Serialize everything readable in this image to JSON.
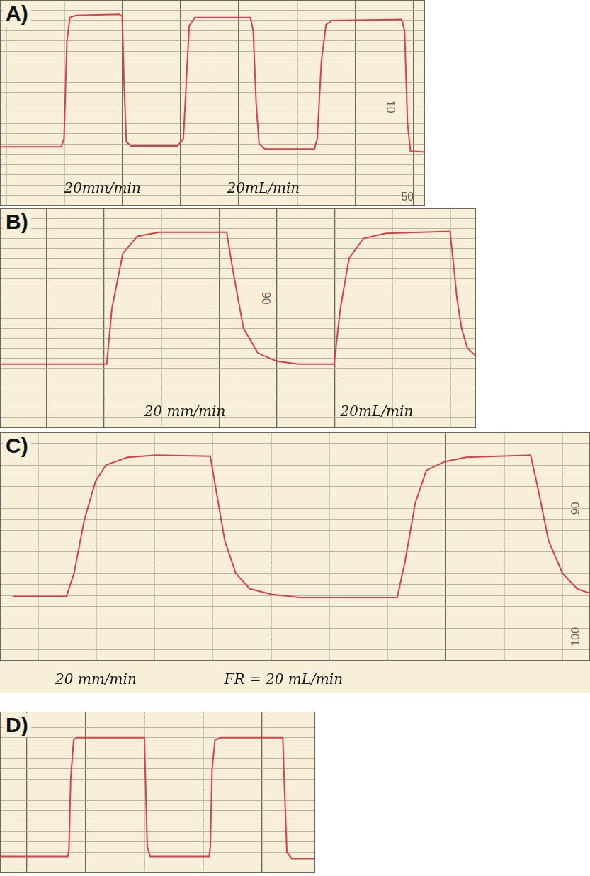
{
  "chart_data": [
    {
      "type": "line",
      "title": "A)",
      "color": "#d8404c",
      "grid": true,
      "tick_labels": false,
      "annotations": [
        "20mm/min",
        "20mL/min",
        "10",
        "50"
      ],
      "x": [
        -0.1,
        0.95,
        1.0,
        1.05,
        1.1,
        1.2,
        1.95,
        2.0,
        2.03,
        2.07,
        2.15,
        2.95,
        3.05,
        3.1,
        3.15,
        3.25,
        4.2,
        4.25,
        4.3,
        4.35,
        4.45,
        5.3,
        5.35,
        5.42,
        5.5,
        5.6,
        6.8,
        6.85,
        6.9,
        6.95,
        7.2
      ],
      "values": [
        5.7,
        5.7,
        6.5,
        16,
        18.3,
        18.5,
        18.6,
        18.4,
        12,
        6.2,
        5.8,
        5.8,
        6.5,
        12,
        17.5,
        18.3,
        18.3,
        17,
        10,
        6,
        5.5,
        5.5,
        6.5,
        14,
        17.6,
        18,
        18.1,
        17,
        8,
        5.3,
        5.2
      ],
      "xlim": [
        -0.1,
        7.2
      ],
      "xticks": [
        0,
        1,
        2,
        3,
        4,
        5,
        6,
        7
      ],
      "ylim": [
        0,
        20
      ],
      "yticks": [
        0,
        1,
        2,
        3,
        4,
        5,
        6,
        7,
        8,
        9,
        10,
        11,
        12,
        13,
        14,
        15,
        16,
        17,
        18,
        19,
        20
      ]
    },
    {
      "type": "line",
      "title": "B)",
      "color": "#d8404c",
      "grid": true,
      "tick_labels": false,
      "annotations": [
        "20 mm/min",
        "20mL/min",
        "90"
      ],
      "x": [
        0.2,
        2.05,
        2.14,
        2.33,
        2.58,
        2.96,
        4.13,
        4.23,
        4.42,
        4.67,
        4.99,
        5.37,
        5.99,
        6.1,
        6.25,
        6.5,
        6.89,
        8.0,
        8.05,
        8.12,
        8.2,
        8.3,
        8.45
      ],
      "values": [
        6.4,
        6.4,
        12,
        17.5,
        19.2,
        19.6,
        19.6,
        16,
        10,
        7.5,
        6.7,
        6.4,
        6.4,
        12,
        17,
        19,
        19.5,
        19.7,
        17,
        13,
        10,
        8,
        7.2
      ],
      "xlim": [
        0.2,
        8.45
      ],
      "xticks": [
        1,
        2,
        3,
        4,
        5,
        6,
        7,
        8
      ],
      "ylim": [
        0,
        22
      ],
      "yticks": [
        0,
        1,
        2,
        3,
        4,
        5,
        6,
        7,
        8,
        9,
        10,
        11,
        12,
        13,
        14,
        15,
        16,
        17,
        18,
        19,
        20,
        21,
        22
      ]
    },
    {
      "type": "line",
      "title": "C)",
      "color": "#d8404c",
      "grid": true,
      "tick_labels": false,
      "annotations": [
        "20 mm/min",
        "FR = 20 mL/min",
        "90",
        "100"
      ],
      "x": [
        0.57,
        1.49,
        1.62,
        1.8,
        1.99,
        2.17,
        2.54,
        3.04,
        3.96,
        4.05,
        4.21,
        4.4,
        4.64,
        5.01,
        5.5,
        7.17,
        7.3,
        7.48,
        7.67,
        7.98,
        8.35,
        9.46,
        9.58,
        9.77,
        10.01,
        10.26,
        10.48
      ],
      "values": [
        5.9,
        5.9,
        8,
        13,
        16.5,
        18,
        18.7,
        18.9,
        18.8,
        16,
        11,
        8,
        6.6,
        6.1,
        5.8,
        5.8,
        9,
        14.5,
        17.5,
        18.3,
        18.7,
        18.9,
        16,
        11,
        8,
        6.6,
        6.2
      ],
      "xlim": [
        0.35,
        10.48
      ],
      "xticks": [
        1,
        2,
        3,
        4,
        5,
        6,
        7,
        8,
        9,
        10
      ],
      "ylim": [
        0,
        21
      ],
      "yticks": [
        0,
        1,
        2,
        3,
        4,
        5,
        6,
        7,
        8,
        9,
        10,
        11,
        12,
        13,
        14,
        15,
        16,
        17,
        18,
        19,
        20,
        21
      ]
    },
    {
      "type": "line",
      "title": "D)",
      "color": "#d8404c",
      "grid": true,
      "tick_labels": false,
      "x": [
        -0.45,
        0.7,
        0.72,
        0.75,
        0.8,
        0.85,
        2.0,
        2.02,
        2.05,
        2.1,
        3.1,
        3.12,
        3.15,
        3.2,
        3.3,
        4.35,
        4.38,
        4.42,
        4.5,
        4.9
      ],
      "values": [
        1.6,
        1.6,
        2.2,
        9,
        12.8,
        13,
        13,
        9,
        2.5,
        1.6,
        1.6,
        2.5,
        10,
        12.8,
        13,
        13,
        8,
        2,
        1.4,
        1.4
      ],
      "xlim": [
        -0.45,
        4.9
      ],
      "xticks": [
        0,
        1,
        2,
        3,
        4
      ],
      "ylim": [
        0,
        15.5
      ],
      "yticks": [
        0,
        1,
        2,
        3,
        4,
        5,
        6,
        7,
        8,
        9,
        10,
        11,
        12,
        13,
        14,
        15
      ]
    }
  ]
}
